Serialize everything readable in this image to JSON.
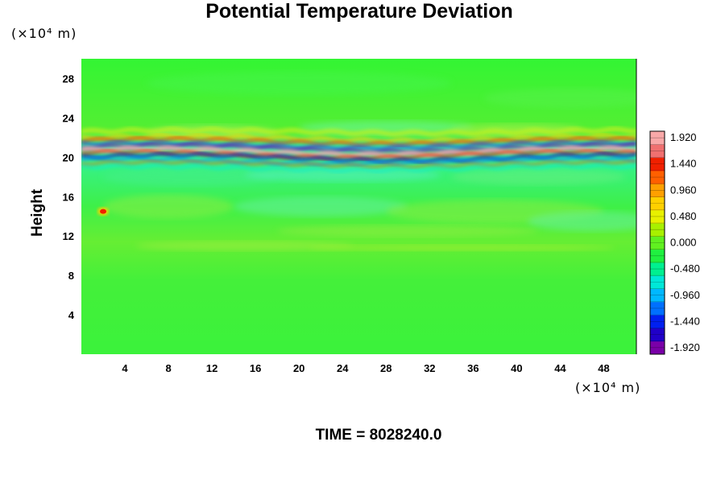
{
  "title": "Potential Temperature Deviation",
  "y_unit": "(×10⁴ m)",
  "x_unit": "(×10⁴ m)",
  "footer": "TIME = 8028240.0",
  "chart_data": {
    "type": "heatmap",
    "title": "Potential Temperature Deviation",
    "ylabel": "Height",
    "xlabel": "",
    "xlim": [
      0,
      51
    ],
    "ylim": [
      0,
      30
    ],
    "xticks": [
      4,
      8,
      12,
      16,
      20,
      24,
      28,
      32,
      36,
      40,
      44,
      48
    ],
    "yticks": [
      4,
      8,
      12,
      16,
      20,
      24,
      28
    ],
    "colorbar": {
      "range": [
        -1.92,
        1.92
      ],
      "labels": [
        "1.920",
        "1.440",
        "0.960",
        "0.480",
        "0.000",
        "-0.480",
        "-0.960",
        "-1.440",
        "-1.920"
      ],
      "colors": [
        "#7a00a8",
        "#2000c8",
        "#0020f0",
        "#0070ff",
        "#00b8ff",
        "#00e8d8",
        "#00f090",
        "#20f040",
        "#60f020",
        "#a8f000",
        "#e8f000",
        "#ffd000",
        "#ffa000",
        "#ff6000",
        "#f02000",
        "#f07070",
        "#f8a8a8"
      ]
    },
    "background_value": 0.1,
    "features": [
      {
        "kind": "band",
        "y_center": 20.5,
        "value": 1.9,
        "note": "strong positive deviation layer"
      },
      {
        "kind": "band",
        "y_center": 20.2,
        "value": -1.9,
        "note": "strong negative deviation layer"
      },
      {
        "kind": "band",
        "y_center": 21.5,
        "value": 1.2
      },
      {
        "kind": "band",
        "y_center": 19.5,
        "value": -0.9
      },
      {
        "kind": "spot",
        "x": 2.0,
        "y": 14.5,
        "value": 1.5
      }
    ]
  }
}
